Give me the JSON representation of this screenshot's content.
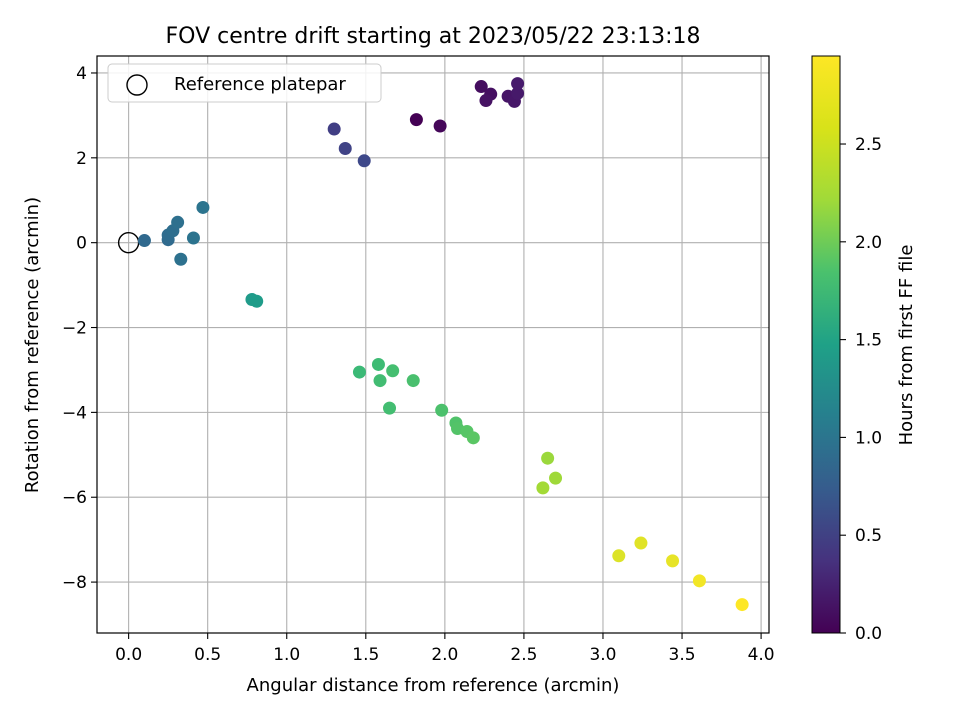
{
  "chart_data": {
    "type": "scatter",
    "title": "FOV centre drift starting at 2023/05/22 23:13:18",
    "xlabel": "Angular distance from reference (arcmin)",
    "ylabel": "Rotation from reference (arcmin)",
    "xlim": [
      -0.2,
      4.05
    ],
    "ylim": [
      -9.2,
      4.4
    ],
    "xticks": [
      0.0,
      0.5,
      1.0,
      1.5,
      2.0,
      2.5,
      3.0,
      3.5,
      4.0
    ],
    "xtick_labels": [
      "0.0",
      "0.5",
      "1.0",
      "1.5",
      "2.0",
      "2.5",
      "3.0",
      "3.5",
      "4.0"
    ],
    "yticks": [
      -8,
      -6,
      -4,
      -2,
      0,
      2,
      4
    ],
    "ytick_labels": [
      "−8",
      "−6",
      "−4",
      "−2",
      "0",
      "2",
      "4"
    ],
    "grid": true,
    "legend": {
      "placement": "top-left",
      "entries": [
        "Reference platepar"
      ]
    },
    "reference_point": {
      "x": 0.0,
      "y": 0.0
    },
    "colorbar": {
      "label": "Hours from first FF file",
      "colormap": "viridis",
      "range": [
        0.0,
        2.95
      ],
      "ticks": [
        0.0,
        0.5,
        1.0,
        1.5,
        2.0,
        2.5
      ],
      "tick_labels": [
        "0.0",
        "0.5",
        "1.0",
        "1.5",
        "2.0",
        "2.5"
      ]
    },
    "points": [
      {
        "x": 1.82,
        "y": 2.9,
        "h": 0.0
      },
      {
        "x": 1.97,
        "y": 2.75,
        "h": 0.05
      },
      {
        "x": 2.23,
        "y": 3.68,
        "h": 0.1
      },
      {
        "x": 2.29,
        "y": 3.5,
        "h": 0.12
      },
      {
        "x": 2.26,
        "y": 3.35,
        "h": 0.14
      },
      {
        "x": 2.4,
        "y": 3.45,
        "h": 0.16
      },
      {
        "x": 2.44,
        "y": 3.33,
        "h": 0.18
      },
      {
        "x": 2.46,
        "y": 3.52,
        "h": 0.2
      },
      {
        "x": 2.46,
        "y": 3.75,
        "h": 0.22
      },
      {
        "x": 1.3,
        "y": 2.68,
        "h": 0.55
      },
      {
        "x": 1.37,
        "y": 2.22,
        "h": 0.6
      },
      {
        "x": 1.49,
        "y": 1.93,
        "h": 0.65
      },
      {
        "x": 0.1,
        "y": 0.05,
        "h": 1.0
      },
      {
        "x": 0.25,
        "y": 0.07,
        "h": 1.02
      },
      {
        "x": 0.25,
        "y": 0.18,
        "h": 1.04
      },
      {
        "x": 0.28,
        "y": 0.28,
        "h": 1.06
      },
      {
        "x": 0.31,
        "y": 0.48,
        "h": 1.08
      },
      {
        "x": 0.33,
        "y": -0.39,
        "h": 1.1
      },
      {
        "x": 0.41,
        "y": 0.11,
        "h": 1.12
      },
      {
        "x": 0.47,
        "y": 0.83,
        "h": 1.14
      },
      {
        "x": 0.78,
        "y": -1.34,
        "h": 1.6
      },
      {
        "x": 0.81,
        "y": -1.38,
        "h": 1.62
      },
      {
        "x": 1.46,
        "y": -3.05,
        "h": 2.0
      },
      {
        "x": 1.58,
        "y": -2.87,
        "h": 2.02
      },
      {
        "x": 1.59,
        "y": -3.25,
        "h": 2.04
      },
      {
        "x": 1.67,
        "y": -3.02,
        "h": 2.06
      },
      {
        "x": 1.65,
        "y": -3.9,
        "h": 2.05
      },
      {
        "x": 1.8,
        "y": -3.25,
        "h": 2.08
      },
      {
        "x": 1.98,
        "y": -3.95,
        "h": 2.1
      },
      {
        "x": 2.07,
        "y": -4.25,
        "h": 2.12
      },
      {
        "x": 2.08,
        "y": -4.38,
        "h": 2.14
      },
      {
        "x": 2.14,
        "y": -4.45,
        "h": 2.16
      },
      {
        "x": 2.18,
        "y": -4.6,
        "h": 2.18
      },
      {
        "x": 2.65,
        "y": -5.08,
        "h": 2.5
      },
      {
        "x": 2.7,
        "y": -5.55,
        "h": 2.52
      },
      {
        "x": 2.62,
        "y": -5.78,
        "h": 2.54
      },
      {
        "x": 3.1,
        "y": -7.38,
        "h": 2.8
      },
      {
        "x": 3.24,
        "y": -7.08,
        "h": 2.82
      },
      {
        "x": 3.44,
        "y": -7.5,
        "h": 2.85
      },
      {
        "x": 3.61,
        "y": -7.97,
        "h": 2.9
      },
      {
        "x": 3.88,
        "y": -8.53,
        "h": 2.95
      }
    ]
  }
}
